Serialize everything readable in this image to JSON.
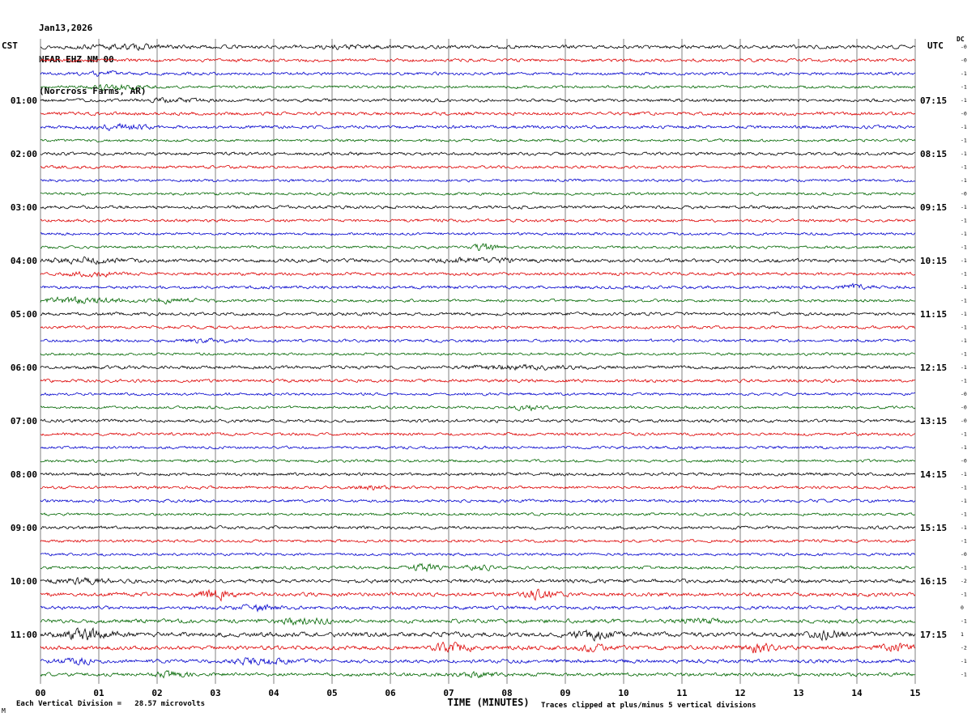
{
  "title": {
    "line1": "Jan13,2026",
    "line2": "NFAR EHZ NM 00",
    "line3": "(Norcross Farms, AR)"
  },
  "corner_labels": {
    "left": "CST",
    "right": "UTC",
    "dc": "DC"
  },
  "x_axis": {
    "label": "TIME (MINUTES)",
    "ticks": [
      "00",
      "01",
      "02",
      "03",
      "04",
      "05",
      "06",
      "07",
      "08",
      "09",
      "10",
      "11",
      "12",
      "13",
      "14",
      "15"
    ]
  },
  "footer": {
    "left": "Each Vertical Division =   28.57 microvolts",
    "right": "Traces clipped at plus/minus 5 vertical divisions",
    "corner_mark": "M"
  },
  "chart_data": {
    "type": "line",
    "description": "12-hour helicorder seismogram for station NFAR EHZ NM 00 (Norcross Farms, AR). 48 traces of 15 minutes each, 4 per hour, colored black/red/blue/green cycling. X axis 0-15 minutes with gridlines each minute. Vertical division = 28.57 microvolts, traces clipped at +/-5 divisions. Background microseismic noise with occasional small local events; noise level increases in the 10:00-11:00 CST hours.",
    "x_range_minutes": [
      0,
      15
    ],
    "colors": [
      "#000000",
      "#dd0000",
      "#0000cc",
      "#006600"
    ],
    "hours": [
      {
        "left": "01:00",
        "right": "07:15"
      },
      {
        "left": "02:00",
        "right": "08:15"
      },
      {
        "left": "03:00",
        "right": "09:15"
      },
      {
        "left": "04:00",
        "right": "10:15"
      },
      {
        "left": "05:00",
        "right": "11:15"
      },
      {
        "left": "06:00",
        "right": "12:15"
      },
      {
        "left": "07:00",
        "right": "13:15"
      },
      {
        "left": "08:00",
        "right": "14:15"
      },
      {
        "left": "09:00",
        "right": "15:15"
      },
      {
        "left": "10:00",
        "right": "16:15"
      },
      {
        "left": "11:00",
        "right": "17:15"
      }
    ],
    "traces": [
      {
        "start_cst": "00:00",
        "dc": "-0",
        "amp": 1.7,
        "seed": 13,
        "bursts": [
          [
            0.1,
            0.05,
            0.8
          ],
          [
            0.35,
            0.04,
            0.6
          ]
        ]
      },
      {
        "start_cst": "00:15",
        "dc": "-0",
        "amp": 1.5,
        "seed": 110,
        "bursts": []
      },
      {
        "start_cst": "00:30",
        "dc": "-1",
        "amp": 1.4,
        "seed": 207,
        "bursts": [
          [
            0.07,
            0.02,
            1.2
          ]
        ]
      },
      {
        "start_cst": "00:45",
        "dc": "-1",
        "amp": 1.3,
        "seed": 304,
        "bursts": [
          [
            0.08,
            0.03,
            1.5
          ]
        ]
      },
      {
        "start_cst": "01:00",
        "dc": "-1",
        "amp": 1.5,
        "seed": 401,
        "bursts": [
          [
            0.15,
            0.03,
            1.0
          ]
        ]
      },
      {
        "start_cst": "01:15",
        "dc": "-0",
        "amp": 1.6,
        "seed": 498,
        "bursts": []
      },
      {
        "start_cst": "01:30",
        "dc": "-1",
        "amp": 1.5,
        "seed": 595,
        "bursts": [
          [
            0.09,
            0.03,
            1.4
          ]
        ]
      },
      {
        "start_cst": "01:45",
        "dc": "-1",
        "amp": 1.3,
        "seed": 692,
        "bursts": []
      },
      {
        "start_cst": "02:00",
        "dc": "-1",
        "amp": 1.5,
        "seed": 789,
        "bursts": []
      },
      {
        "start_cst": "02:15",
        "dc": "-1",
        "amp": 1.4,
        "seed": 886,
        "bursts": []
      },
      {
        "start_cst": "02:30",
        "dc": "-1",
        "amp": 1.3,
        "seed": 983,
        "bursts": []
      },
      {
        "start_cst": "02:45",
        "dc": "-0",
        "amp": 1.3,
        "seed": 1080,
        "bursts": []
      },
      {
        "start_cst": "03:00",
        "dc": "-1",
        "amp": 1.5,
        "seed": 1177,
        "bursts": []
      },
      {
        "start_cst": "03:15",
        "dc": "-1",
        "amp": 1.4,
        "seed": 1274,
        "bursts": []
      },
      {
        "start_cst": "03:30",
        "dc": "-1",
        "amp": 1.3,
        "seed": 1371,
        "bursts": []
      },
      {
        "start_cst": "03:45",
        "dc": "-1",
        "amp": 1.3,
        "seed": 1468,
        "bursts": [
          [
            0.51,
            0.012,
            3.2
          ]
        ]
      },
      {
        "start_cst": "04:00",
        "dc": "-1",
        "amp": 1.7,
        "seed": 1565,
        "bursts": [
          [
            0.05,
            0.04,
            1.2
          ],
          [
            0.5,
            0.05,
            0.8
          ]
        ]
      },
      {
        "start_cst": "04:15",
        "dc": "-1",
        "amp": 1.5,
        "seed": 1662,
        "bursts": [
          [
            0.06,
            0.03,
            1.0
          ]
        ]
      },
      {
        "start_cst": "04:30",
        "dc": "-1",
        "amp": 1.5,
        "seed": 1759,
        "bursts": [
          [
            0.93,
            0.02,
            1.2
          ]
        ]
      },
      {
        "start_cst": "04:45",
        "dc": "-1",
        "amp": 1.4,
        "seed": 1856,
        "bursts": [
          [
            0.04,
            0.05,
            1.6
          ],
          [
            0.15,
            0.03,
            1.2
          ]
        ]
      },
      {
        "start_cst": "05:00",
        "dc": "-1",
        "amp": 1.5,
        "seed": 1953,
        "bursts": []
      },
      {
        "start_cst": "05:15",
        "dc": "-1",
        "amp": 1.4,
        "seed": 2050,
        "bursts": []
      },
      {
        "start_cst": "05:30",
        "dc": "-1",
        "amp": 1.4,
        "seed": 2147,
        "bursts": [
          [
            0.2,
            0.03,
            1.0
          ]
        ]
      },
      {
        "start_cst": "05:45",
        "dc": "-1",
        "amp": 1.3,
        "seed": 2244,
        "bursts": []
      },
      {
        "start_cst": "06:00",
        "dc": "-1",
        "amp": 1.6,
        "seed": 2341,
        "bursts": [
          [
            0.55,
            0.05,
            0.9
          ]
        ]
      },
      {
        "start_cst": "06:15",
        "dc": "-1",
        "amp": 1.5,
        "seed": 2438,
        "bursts": []
      },
      {
        "start_cst": "06:30",
        "dc": "-0",
        "amp": 1.3,
        "seed": 2535,
        "bursts": []
      },
      {
        "start_cst": "06:45",
        "dc": "-0",
        "amp": 1.3,
        "seed": 2632,
        "bursts": [
          [
            0.56,
            0.02,
            1.5
          ]
        ]
      },
      {
        "start_cst": "07:00",
        "dc": "-0",
        "amp": 1.5,
        "seed": 2729,
        "bursts": []
      },
      {
        "start_cst": "07:15",
        "dc": "-1",
        "amp": 1.4,
        "seed": 2826,
        "bursts": []
      },
      {
        "start_cst": "07:30",
        "dc": "-1",
        "amp": 1.3,
        "seed": 2923,
        "bursts": []
      },
      {
        "start_cst": "07:45",
        "dc": "-0",
        "amp": 1.3,
        "seed": 3020,
        "bursts": []
      },
      {
        "start_cst": "08:00",
        "dc": "-1",
        "amp": 1.5,
        "seed": 3117,
        "bursts": []
      },
      {
        "start_cst": "08:15",
        "dc": "-1",
        "amp": 1.4,
        "seed": 3214,
        "bursts": [
          [
            0.38,
            0.02,
            1.0
          ]
        ]
      },
      {
        "start_cst": "08:30",
        "dc": "-1",
        "amp": 1.4,
        "seed": 3311,
        "bursts": []
      },
      {
        "start_cst": "08:45",
        "dc": "-1",
        "amp": 1.3,
        "seed": 3408,
        "bursts": []
      },
      {
        "start_cst": "09:00",
        "dc": "-1",
        "amp": 1.5,
        "seed": 3505,
        "bursts": []
      },
      {
        "start_cst": "09:15",
        "dc": "-1",
        "amp": 1.4,
        "seed": 3602,
        "bursts": []
      },
      {
        "start_cst": "09:30",
        "dc": "-0",
        "amp": 1.3,
        "seed": 3699,
        "bursts": []
      },
      {
        "start_cst": "09:45",
        "dc": "-1",
        "amp": 1.4,
        "seed": 3796,
        "bursts": [
          [
            0.44,
            0.02,
            2.0
          ],
          [
            0.5,
            0.015,
            1.5
          ]
        ]
      },
      {
        "start_cst": "10:00",
        "dc": "-2",
        "amp": 1.8,
        "seed": 3893,
        "bursts": [
          [
            0.05,
            0.03,
            1.0
          ]
        ]
      },
      {
        "start_cst": "10:15",
        "dc": "-1",
        "amp": 1.8,
        "seed": 3990,
        "bursts": [
          [
            0.2,
            0.02,
            2.2
          ],
          [
            0.57,
            0.02,
            1.8
          ]
        ]
      },
      {
        "start_cst": "10:30",
        "dc": "0",
        "amp": 1.6,
        "seed": 4087,
        "bursts": [
          [
            0.25,
            0.02,
            1.5
          ]
        ]
      },
      {
        "start_cst": "10:45",
        "dc": "-1",
        "amp": 1.9,
        "seed": 4184,
        "bursts": [
          [
            0.3,
            0.03,
            1.2
          ],
          [
            0.75,
            0.03,
            1.0
          ]
        ]
      },
      {
        "start_cst": "11:00",
        "dc": "1",
        "amp": 2.2,
        "seed": 4281,
        "bursts": [
          [
            0.05,
            0.03,
            1.8
          ],
          [
            0.63,
            0.02,
            1.5
          ],
          [
            0.9,
            0.02,
            1.6
          ]
        ]
      },
      {
        "start_cst": "11:15",
        "dc": "-2",
        "amp": 2.0,
        "seed": 4378,
        "bursts": [
          [
            0.47,
            0.02,
            1.8
          ],
          [
            0.63,
            0.015,
            1.5
          ],
          [
            0.82,
            0.02,
            1.6
          ],
          [
            0.98,
            0.02,
            1.4
          ]
        ]
      },
      {
        "start_cst": "11:30",
        "dc": "-1",
        "amp": 1.8,
        "seed": 4475,
        "bursts": [
          [
            0.04,
            0.02,
            1.2
          ],
          [
            0.25,
            0.03,
            1.6
          ]
        ]
      },
      {
        "start_cst": "11:45",
        "dc": "-1",
        "amp": 1.7,
        "seed": 4572,
        "bursts": [
          [
            0.15,
            0.02,
            1.2
          ],
          [
            0.5,
            0.03,
            0.8
          ]
        ]
      }
    ]
  }
}
